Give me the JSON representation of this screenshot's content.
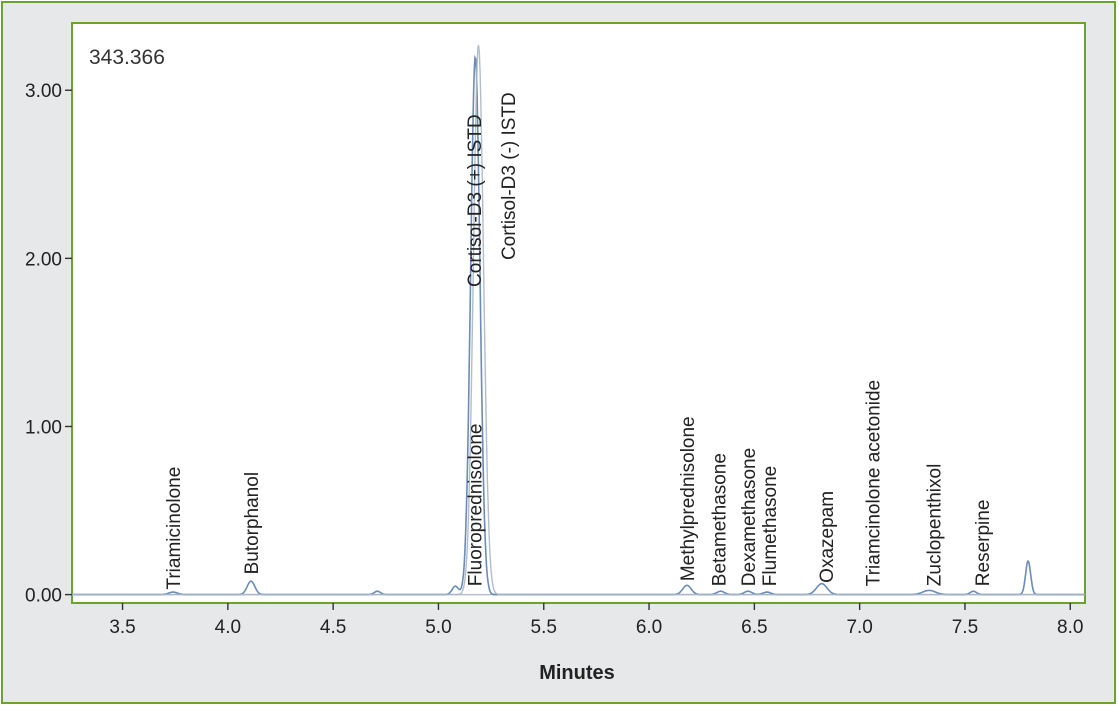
{
  "chart_data": {
    "type": "line",
    "corner_label": "343.366",
    "xlabel": "Minutes",
    "ylabel": "",
    "xlim": [
      3.26,
      8.07
    ],
    "ylim": [
      -0.05,
      3.4
    ],
    "x_ticks": [
      {
        "value": 3.5,
        "label": "3.5"
      },
      {
        "value": 4.0,
        "label": "4.0"
      },
      {
        "value": 4.5,
        "label": "4.5"
      },
      {
        "value": 5.0,
        "label": "5.0"
      },
      {
        "value": 5.5,
        "label": "5.5"
      },
      {
        "value": 6.0,
        "label": "6.0"
      },
      {
        "value": 6.5,
        "label": "6.5"
      },
      {
        "value": 7.0,
        "label": "7.0"
      },
      {
        "value": 7.5,
        "label": "7.5"
      },
      {
        "value": 8.0,
        "label": "8.0"
      }
    ],
    "y_ticks": [
      {
        "value": 0.0,
        "label": "0.00"
      },
      {
        "value": 1.0,
        "label": "1.00"
      },
      {
        "value": 2.0,
        "label": "2.00"
      },
      {
        "value": 3.0,
        "label": "3.00"
      }
    ],
    "grid": false,
    "series": [
      {
        "color": "#5b7fb0",
        "peaks": [
          {
            "x": 3.74,
            "height": 0.015,
            "width": 0.02
          },
          {
            "x": 4.11,
            "height": 0.08,
            "width": 0.018
          },
          {
            "x": 4.71,
            "height": 0.02,
            "width": 0.015
          },
          {
            "x": 5.08,
            "height": 0.05,
            "width": 0.015
          },
          {
            "x": 5.175,
            "height": 3.2,
            "width": 0.022
          },
          {
            "x": 6.18,
            "height": 0.055,
            "width": 0.02
          },
          {
            "x": 6.34,
            "height": 0.02,
            "width": 0.018
          },
          {
            "x": 6.47,
            "height": 0.02,
            "width": 0.018
          },
          {
            "x": 6.56,
            "height": 0.015,
            "width": 0.018
          },
          {
            "x": 6.82,
            "height": 0.065,
            "width": 0.025
          },
          {
            "x": 7.33,
            "height": 0.025,
            "width": 0.03
          },
          {
            "x": 7.54,
            "height": 0.02,
            "width": 0.015
          },
          {
            "x": 7.8,
            "height": 0.2,
            "width": 0.012
          }
        ]
      },
      {
        "color": "#aab6c6",
        "peaks": [
          {
            "x": 5.19,
            "height": 3.27,
            "width": 0.024
          }
        ]
      }
    ],
    "annotations": [
      {
        "text": "Triamicinolone",
        "x": 3.74,
        "y": 0.03
      },
      {
        "text": "Butorphanol",
        "x": 4.11,
        "y": 0.12
      },
      {
        "text": "Fluoroprednisolone",
        "x": 5.17,
        "y": 0.05
      },
      {
        "text": "Cortisol-D3 (+) ISTD",
        "x": 5.17,
        "y": 1.83
      },
      {
        "text": "Cortisol-D3 (-) ISTD",
        "x": 5.33,
        "y": 1.99
      },
      {
        "text": "Methylprednisolone",
        "x": 6.18,
        "y": 0.08
      },
      {
        "text": "Betamethasone",
        "x": 6.33,
        "y": 0.05
      },
      {
        "text": "Dexamethasone",
        "x": 6.47,
        "y": 0.05
      },
      {
        "text": "Flumethasone",
        "x": 6.57,
        "y": 0.05
      },
      {
        "text": "Oxazepam",
        "x": 6.84,
        "y": 0.07
      },
      {
        "text": "Triamcinolone acetonide",
        "x": 7.06,
        "y": 0.05
      },
      {
        "text": "Zuclopenthixol",
        "x": 7.35,
        "y": 0.05
      },
      {
        "text": "Reserpine",
        "x": 7.58,
        "y": 0.05
      }
    ]
  }
}
